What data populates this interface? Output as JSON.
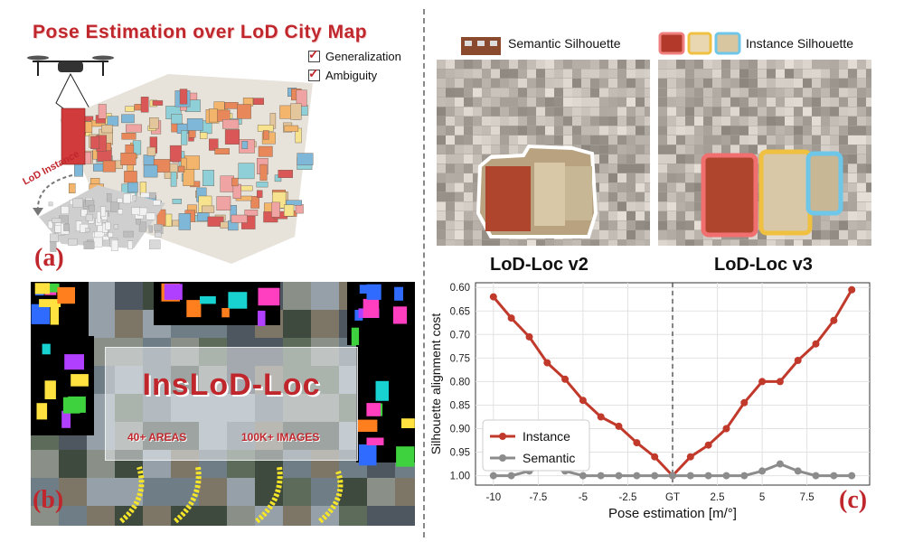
{
  "panel_a": {
    "title": "Pose Estimation over LoD City Map",
    "checks": [
      "Generalization",
      "Ambiguity"
    ],
    "arrow_label": "LoD Instance",
    "tag": "(a)"
  },
  "panel_b": {
    "title": "InsLoD-Loc",
    "stats": [
      "40+ AREAS",
      "100K+ IMAGES"
    ],
    "tag": "(b)"
  },
  "panel_c": {
    "legend_semantic": "Semantic Silhouette",
    "legend_instance": "Instance Silhouette",
    "version_left": "LoD-Loc v2",
    "version_right": "LoD-Loc v3",
    "tag": "(c)"
  },
  "colors": {
    "accent": "#c0272d",
    "instance": "#c0392b",
    "semantic": "#8c8c8c"
  },
  "chart_data": {
    "type": "line",
    "xlabel": "Pose estimation [m/°]",
    "ylabel": "Silhouette alignment cost",
    "x": [
      -10,
      -9,
      -8,
      -7,
      -6,
      -5,
      -4,
      -3,
      -2,
      -1,
      0,
      1,
      2,
      3,
      4,
      5,
      6,
      7,
      8,
      9,
      10
    ],
    "x_ticks": [
      -10,
      -7.5,
      -5,
      -2.5,
      0,
      2.5,
      5,
      7.5
    ],
    "x_tick_labels": [
      "-10",
      "-7.5",
      "-5",
      "-2.5",
      "GT",
      "2.5",
      "5",
      "7.5"
    ],
    "y_ticks": [
      0.6,
      0.65,
      0.7,
      0.75,
      0.8,
      0.85,
      0.9,
      0.95,
      1.0
    ],
    "y_tick_labels": [
      "0.60",
      "0.65",
      "0.70",
      "0.75",
      "0.80",
      "0.85",
      "0.90",
      "0.95",
      "1.00"
    ],
    "ylim": [
      1.02,
      0.59
    ],
    "xlim": [
      -11,
      11
    ],
    "y_inverted": true,
    "grid": true,
    "legend_position": "bottom-left",
    "gt_line": 0,
    "series": [
      {
        "name": "Instance",
        "color": "#c0392b",
        "values": [
          0.62,
          0.665,
          0.705,
          0.76,
          0.795,
          0.84,
          0.875,
          0.895,
          0.93,
          0.96,
          1.0,
          0.96,
          0.935,
          0.9,
          0.845,
          0.8,
          0.8,
          0.755,
          0.72,
          0.67,
          0.605
        ]
      },
      {
        "name": "Semantic",
        "color": "#8c8c8c",
        "values": [
          1.0,
          1.0,
          0.99,
          0.98,
          0.99,
          1.0,
          1.0,
          1.0,
          1.0,
          1.0,
          1.0,
          1.0,
          1.0,
          1.0,
          1.0,
          0.99,
          0.975,
          0.99,
          1.0,
          1.0,
          1.0
        ]
      }
    ]
  }
}
